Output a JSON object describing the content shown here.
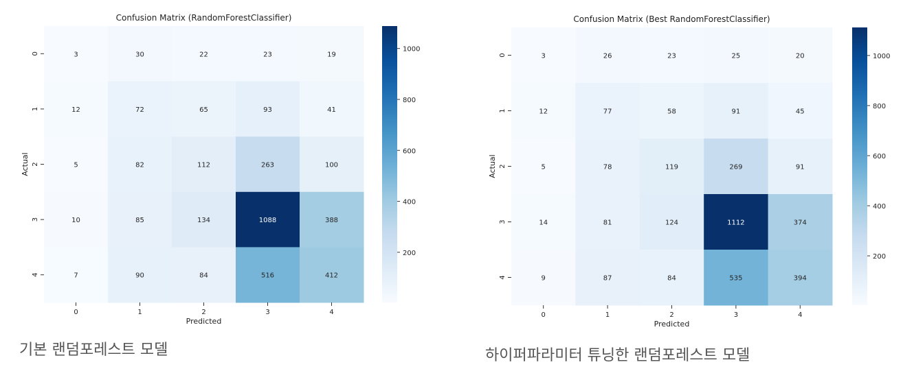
{
  "chart_data": [
    {
      "type": "heatmap",
      "title": "Confusion Matrix (RandomForestClassifier)",
      "xlabel": "Predicted",
      "ylabel": "Actual",
      "x_categories": [
        "0",
        "1",
        "2",
        "3",
        "4"
      ],
      "y_categories": [
        "0",
        "1",
        "2",
        "3",
        "4"
      ],
      "values": [
        [
          3,
          30,
          22,
          23,
          19
        ],
        [
          12,
          72,
          65,
          93,
          41
        ],
        [
          5,
          82,
          112,
          263,
          100
        ],
        [
          10,
          85,
          134,
          1088,
          388
        ],
        [
          7,
          90,
          84,
          516,
          412
        ]
      ],
      "colormap": "Blues",
      "colorbar": {
        "min": 3,
        "max": 1088,
        "ticks": [
          200,
          400,
          600,
          800,
          1000
        ]
      }
    },
    {
      "type": "heatmap",
      "title": "Confusion Matrix (Best RandomForestClassifier)",
      "xlabel": "Predicted",
      "ylabel": "Actual",
      "x_categories": [
        "0",
        "1",
        "2",
        "3",
        "4"
      ],
      "y_categories": [
        "0",
        "1",
        "2",
        "3",
        "4"
      ],
      "values": [
        [
          3,
          26,
          23,
          25,
          20
        ],
        [
          12,
          77,
          58,
          91,
          45
        ],
        [
          5,
          78,
          119,
          269,
          91
        ],
        [
          14,
          81,
          124,
          1112,
          374
        ],
        [
          9,
          87,
          84,
          535,
          394
        ]
      ],
      "colormap": "Blues",
      "colorbar": {
        "min": 3,
        "max": 1112,
        "ticks": [
          200,
          400,
          600,
          800,
          1000
        ]
      }
    }
  ],
  "captions": {
    "left": "기본 랜덤포레스트 모델",
    "right": "하이퍼파라미터 튜닝한 랜덤포레스트 모델"
  }
}
